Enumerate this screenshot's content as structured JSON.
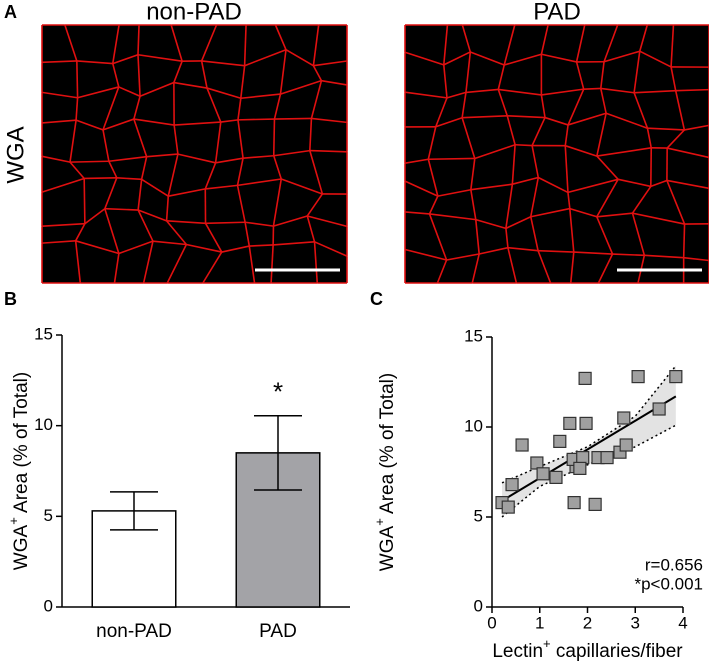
{
  "panel_labels": [
    "A",
    "B",
    "C"
  ],
  "image_titles": [
    "non-PAD",
    "PAD"
  ],
  "image_row_label": "WGA",
  "chart_data": [
    {
      "type": "bar",
      "categories": [
        "non-PAD",
        "PAD"
      ],
      "values": [
        5.3,
        8.5
      ],
      "errors": [
        1.05,
        2.05
      ],
      "colors": [
        "#ffffff",
        "#a3a3a7"
      ],
      "ylim": [
        0,
        15
      ],
      "yticks": [
        0,
        5,
        10,
        15
      ],
      "ylabel_parts": [
        "WGA",
        "+",
        " Area (% of Total)"
      ],
      "annotations": [
        "",
        "*"
      ]
    },
    {
      "type": "scatter",
      "x": [
        0.21,
        0.34,
        0.42,
        0.63,
        0.94,
        1.07,
        1.34,
        1.42,
        1.63,
        1.76,
        1.7,
        1.9,
        1.97,
        1.95,
        1.84,
        1.72,
        2.16,
        2.22,
        2.41,
        2.68,
        2.81,
        2.76,
        3.06,
        3.5,
        3.85
      ],
      "y": [
        5.8,
        5.55,
        6.8,
        9.0,
        8.0,
        7.4,
        7.2,
        9.2,
        10.2,
        7.8,
        8.2,
        8.3,
        10.2,
        12.7,
        7.7,
        5.8,
        5.7,
        8.3,
        8.3,
        8.6,
        9.0,
        10.5,
        12.8,
        11.0,
        12.8
      ],
      "color": "#a0a0a0",
      "fit": {
        "x": [
          0.21,
          3.85
        ],
        "y": [
          5.9,
          11.7
        ]
      },
      "band": {
        "x": [
          0.21,
          1,
          2,
          3,
          3.85
        ],
        "lower": [
          5.0,
          6.7,
          7.9,
          8.9,
          10.1
        ],
        "upper": [
          6.9,
          7.8,
          8.9,
          10.6,
          13.4
        ]
      },
      "xlim": [
        0,
        4
      ],
      "xticks": [
        0,
        1,
        2,
        3,
        4
      ],
      "ylim": [
        0,
        15
      ],
      "yticks": [
        0,
        5,
        10,
        15
      ],
      "xlabel_parts": [
        "Lectin",
        "+",
        " capillaries/fiber"
      ],
      "ylabel_parts": [
        "WGA",
        "+",
        " Area (% of Total)"
      ],
      "annotations": [
        "r=0.656",
        "*p<0.001"
      ]
    }
  ]
}
